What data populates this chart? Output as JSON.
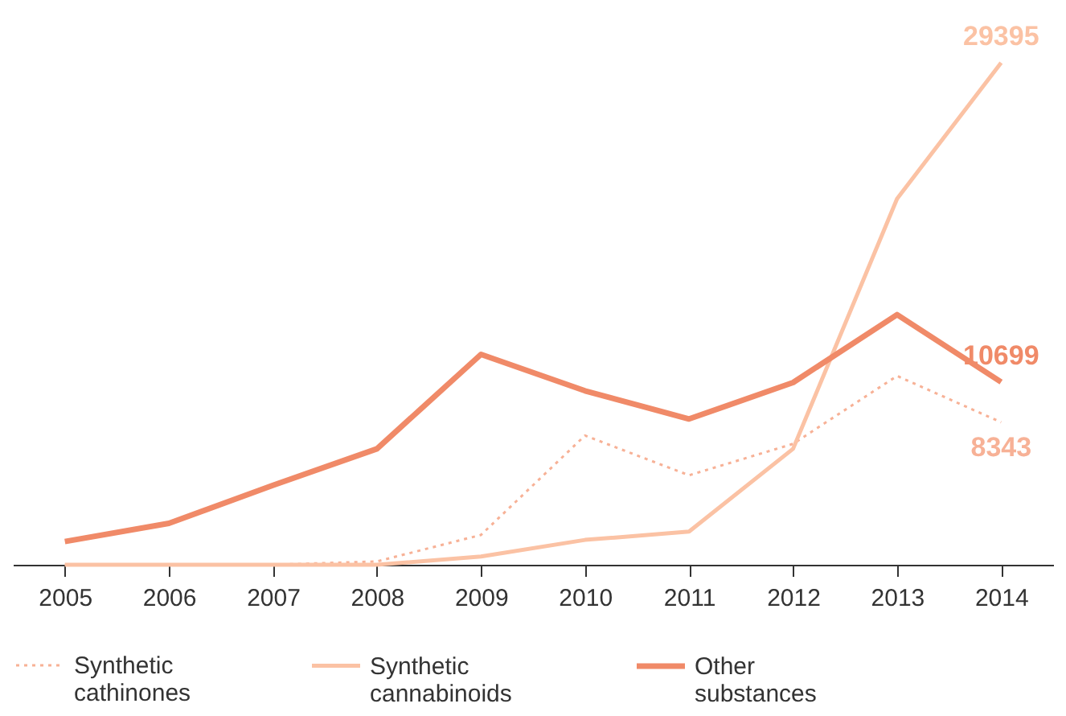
{
  "chart_data": {
    "type": "line",
    "categories": [
      "2005",
      "2006",
      "2007",
      "2008",
      "2009",
      "2010",
      "2011",
      "2012",
      "2013",
      "2014"
    ],
    "tick_labels": "x",
    "grid": false,
    "legend": "bottom",
    "marker": "none",
    "series": [
      {
        "name": "Synthetic cathinones",
        "color": "#f7b196",
        "line_style": "dotted",
        "values": [
          0,
          0,
          0,
          194,
          1746,
          7566,
          5238,
          7081,
          11058,
          8343
        ],
        "value_labels": [
          null,
          null,
          null,
          null,
          null,
          null,
          null,
          null,
          null,
          "8343"
        ]
      },
      {
        "name": "Synthetic cannabinoids",
        "color": "#fbc2a4",
        "line_style": "solid",
        "values": [
          0,
          0,
          0,
          0,
          485,
          1455,
          1940,
          6790,
          21437,
          29395
        ],
        "value_labels": [
          null,
          null,
          null,
          null,
          null,
          null,
          null,
          null,
          null,
          "29395"
        ]
      },
      {
        "name": "Other substances",
        "color": "#f08a68",
        "line_style": "solid",
        "values": [
          1360,
          2425,
          4656,
          6790,
          12319,
          10185,
          8536,
          10670,
          14647,
          10699
        ],
        "value_labels": [
          null,
          null,
          null,
          null,
          null,
          null,
          null,
          null,
          null,
          "10699"
        ]
      }
    ]
  }
}
